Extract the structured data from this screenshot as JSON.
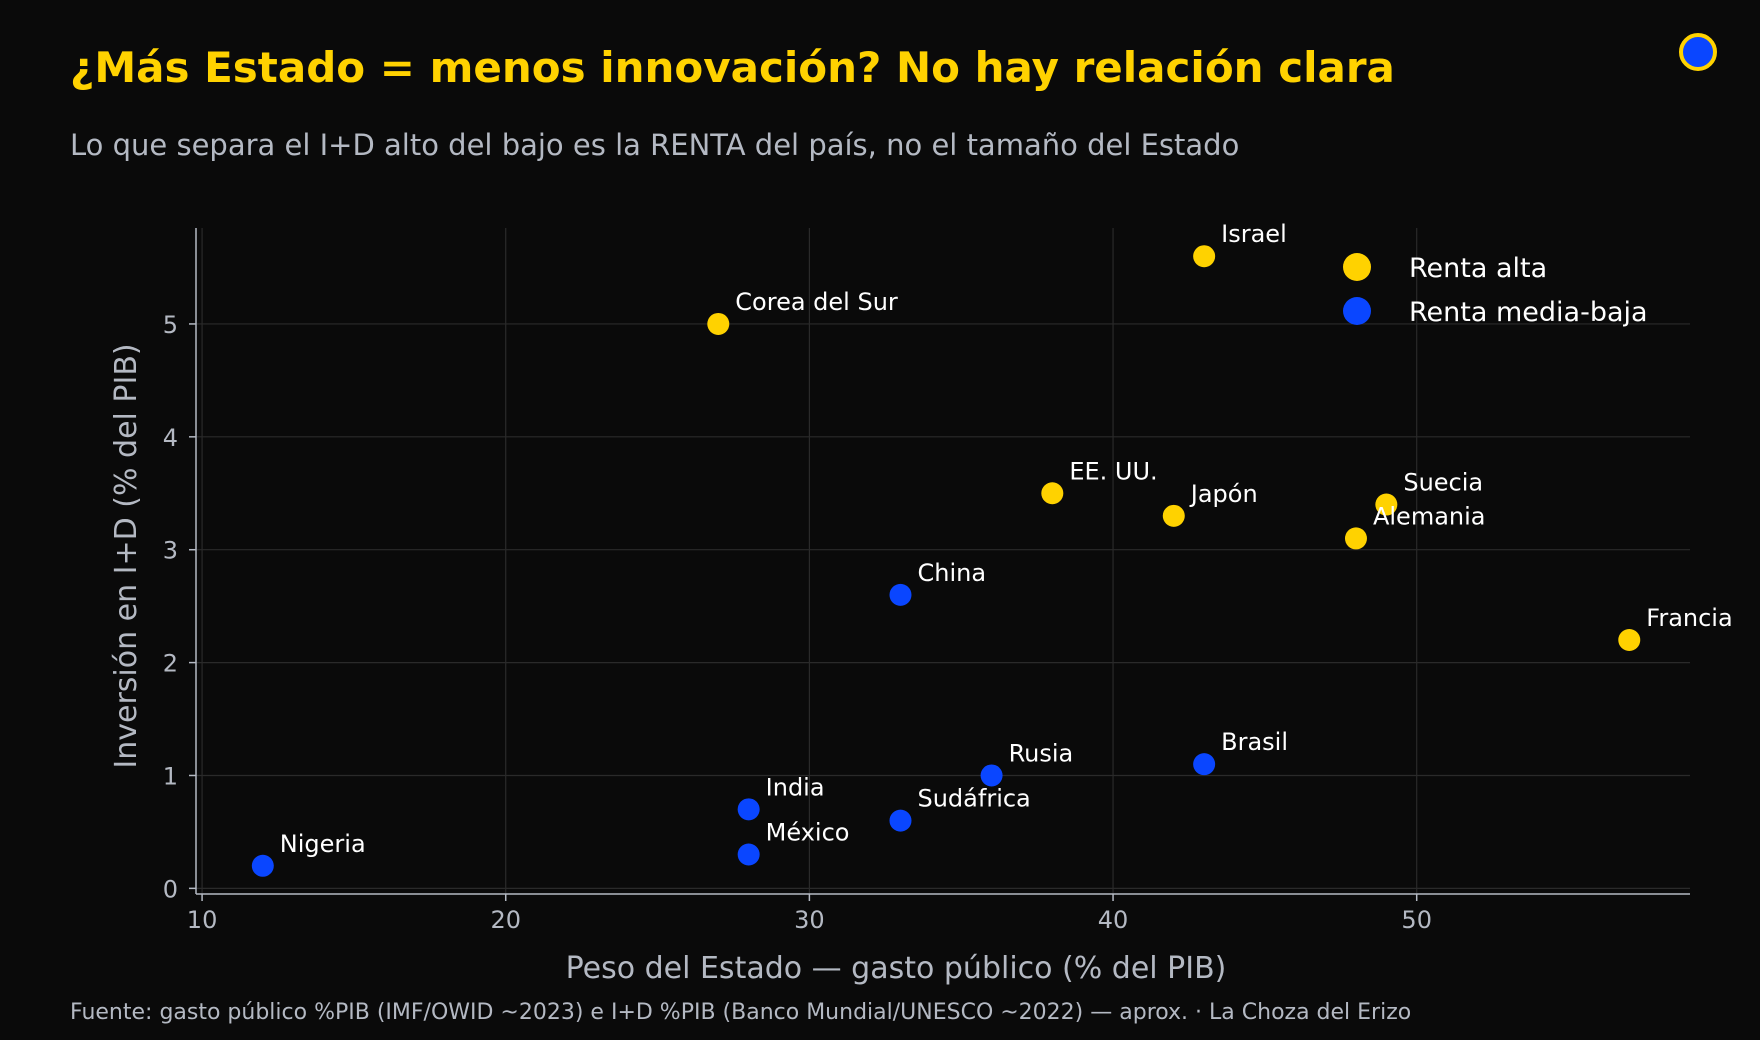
{
  "colors": {
    "background": "#0a0a0a",
    "high_income": "#ffd200",
    "low_income": "#0a46ff",
    "text_muted": "#b4b9c3",
    "grid": "#2a2a2a"
  },
  "logo_icon": "blue-circle-with-yellow-ring",
  "chart_data": {
    "type": "scatter",
    "title": "¿Más Estado = menos innovación? No hay relación clara",
    "subtitle": "Lo que separa el I+D alto del bajo es la RENTA del país, no el tamaño del Estado",
    "xlabel": "Peso del Estado — gasto público (% del PIB)",
    "ylabel": "Inversión en I+D (% del PIB)",
    "xlim": [
      9.8,
      59
    ],
    "ylim": [
      -0.05,
      5.85
    ],
    "xticks": [
      10,
      20,
      30,
      40,
      50
    ],
    "yticks": [
      0,
      1,
      2,
      3,
      4,
      5
    ],
    "grid": true,
    "legend_position": "top-right",
    "series": [
      {
        "name": "Renta alta",
        "color": "#ffd200",
        "points": [
          {
            "label": "Israel",
            "x": 43,
            "y": 5.6
          },
          {
            "label": "Corea del Sur",
            "x": 27,
            "y": 5.0
          },
          {
            "label": "EE. UU.",
            "x": 38,
            "y": 3.5
          },
          {
            "label": "Japón",
            "x": 42,
            "y": 3.3
          },
          {
            "label": "Suecia",
            "x": 49,
            "y": 3.4
          },
          {
            "label": "Alemania",
            "x": 48,
            "y": 3.1
          },
          {
            "label": "Francia",
            "x": 57,
            "y": 2.2
          }
        ]
      },
      {
        "name": "Renta media-baja",
        "color": "#0a46ff",
        "points": [
          {
            "label": "China",
            "x": 33,
            "y": 2.6
          },
          {
            "label": "Rusia",
            "x": 36,
            "y": 1.0
          },
          {
            "label": "Brasil",
            "x": 43,
            "y": 1.1
          },
          {
            "label": "India",
            "x": 28,
            "y": 0.7
          },
          {
            "label": "Sudáfrica",
            "x": 33,
            "y": 0.6
          },
          {
            "label": "México",
            "x": 28,
            "y": 0.3
          },
          {
            "label": "Nigeria",
            "x": 12,
            "y": 0.2
          }
        ]
      }
    ]
  },
  "source": "Fuente: gasto público %PIB (IMF/OWID ~2023) e I+D %PIB (Banco Mundial/UNESCO ~2022) — aprox.  ·  La Choza del Erizo"
}
